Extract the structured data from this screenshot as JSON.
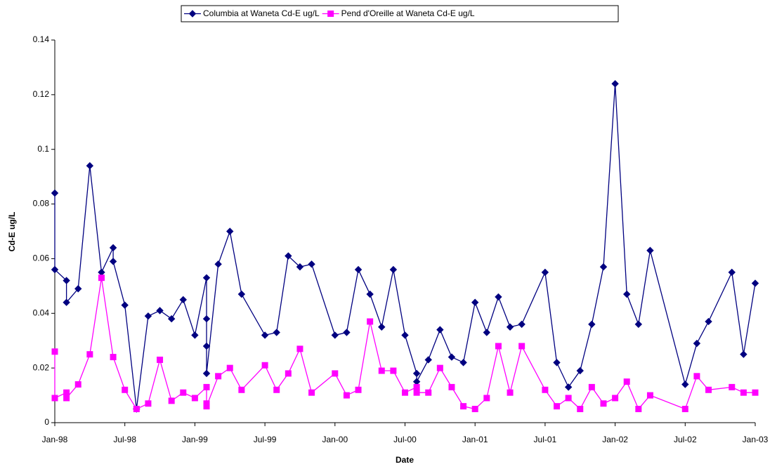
{
  "chart_data": {
    "type": "line",
    "x_label": "Date",
    "y_label": "Cd-E ug/L",
    "xlim": [
      "1998-01",
      "2003-01"
    ],
    "xticks": [
      {
        "value": "1998-01",
        "label": "Jan-98"
      },
      {
        "value": "1998-07",
        "label": "Jul-98"
      },
      {
        "value": "1999-01",
        "label": "Jan-99"
      },
      {
        "value": "1999-07",
        "label": "Jul-99"
      },
      {
        "value": "2000-01",
        "label": "Jan-00"
      },
      {
        "value": "2000-07",
        "label": "Jul-00"
      },
      {
        "value": "2001-01",
        "label": "Jan-01"
      },
      {
        "value": "2001-07",
        "label": "Jul-01"
      },
      {
        "value": "2002-01",
        "label": "Jan-02"
      },
      {
        "value": "2002-07",
        "label": "Jul-02"
      },
      {
        "value": "2003-01",
        "label": "Jan-03"
      }
    ],
    "ylim": [
      0,
      0.14
    ],
    "yticks": [
      0,
      0.02,
      0.04,
      0.06,
      0.08,
      0.1,
      0.12,
      0.14
    ],
    "legend": "top",
    "series": [
      {
        "name": "Columbia at Waneta Cd-E ug/L",
        "color": "#000080",
        "marker": "diamond",
        "x": [
          "1998-01",
          "1998-01",
          "1998-02",
          "1998-02",
          "1998-03",
          "1998-04",
          "1998-05",
          "1998-06",
          "1998-06",
          "1998-07",
          "1998-08",
          "1998-09",
          "1998-10",
          "1998-11",
          "1998-12",
          "1999-01",
          "1999-02",
          "1999-02",
          "1999-02",
          "1999-02",
          "1999-03",
          "1999-04",
          "1999-05",
          "1999-07",
          "1999-08",
          "1999-09",
          "1999-10",
          "1999-11",
          "2000-01",
          "2000-02",
          "2000-03",
          "2000-04",
          "2000-05",
          "2000-06",
          "2000-07",
          "2000-08",
          "2000-08",
          "2000-09",
          "2000-10",
          "2000-11",
          "2000-12",
          "2001-01",
          "2001-02",
          "2001-03",
          "2001-04",
          "2001-05",
          "2001-07",
          "2001-08",
          "2001-09",
          "2001-10",
          "2001-11",
          "2001-12",
          "2002-01",
          "2002-02",
          "2002-03",
          "2002-04",
          "2002-07",
          "2002-08",
          "2002-09",
          "2002-11",
          "2002-12",
          "2003-01"
        ],
        "values": [
          0.084,
          0.056,
          0.052,
          0.044,
          0.049,
          0.094,
          0.055,
          0.064,
          0.059,
          0.043,
          0.005,
          0.039,
          0.041,
          0.038,
          0.045,
          0.032,
          0.053,
          0.038,
          0.028,
          0.018,
          0.058,
          0.07,
          0.047,
          0.032,
          0.033,
          0.061,
          0.057,
          0.058,
          0.032,
          0.033,
          0.056,
          0.047,
          0.035,
          0.056,
          0.032,
          0.018,
          0.015,
          0.023,
          0.034,
          0.024,
          0.022,
          0.044,
          0.033,
          0.046,
          0.035,
          0.036,
          0.055,
          0.022,
          0.013,
          0.019,
          0.036,
          0.057,
          0.124,
          0.047,
          0.036,
          0.063,
          0.014,
          0.029,
          0.037,
          0.055,
          0.025,
          0.051
        ]
      },
      {
        "name": "Pend d'Oreille at Waneta Cd-E ug/L",
        "color": "#FF00FF",
        "marker": "square",
        "x": [
          "1998-01",
          "1998-01",
          "1998-02",
          "1998-02",
          "1998-03",
          "1998-04",
          "1998-05",
          "1998-06",
          "1998-07",
          "1998-08",
          "1998-09",
          "1998-10",
          "1998-11",
          "1998-12",
          "1999-01",
          "1999-02",
          "1999-02",
          "1999-02",
          "1999-03",
          "1999-04",
          "1999-05",
          "1999-07",
          "1999-08",
          "1999-09",
          "1999-10",
          "1999-11",
          "2000-01",
          "2000-02",
          "2000-03",
          "2000-04",
          "2000-05",
          "2000-06",
          "2000-07",
          "2000-08",
          "2000-08",
          "2000-09",
          "2000-10",
          "2000-11",
          "2000-12",
          "2001-01",
          "2001-02",
          "2001-03",
          "2001-04",
          "2001-05",
          "2001-07",
          "2001-08",
          "2001-09",
          "2001-10",
          "2001-11",
          "2001-12",
          "2002-01",
          "2002-02",
          "2002-03",
          "2002-04",
          "2002-07",
          "2002-08",
          "2002-09",
          "2002-11",
          "2002-12",
          "2003-01"
        ],
        "values": [
          0.026,
          0.009,
          0.011,
          0.009,
          0.014,
          0.025,
          0.053,
          0.024,
          0.012,
          0.005,
          0.007,
          0.023,
          0.008,
          0.011,
          0.009,
          0.013,
          0.007,
          0.006,
          0.017,
          0.02,
          0.012,
          0.021,
          0.012,
          0.018,
          0.027,
          0.011,
          0.018,
          0.01,
          0.012,
          0.037,
          0.019,
          0.019,
          0.011,
          0.013,
          0.011,
          0.011,
          0.02,
          0.013,
          0.006,
          0.005,
          0.009,
          0.028,
          0.011,
          0.028,
          0.012,
          0.006,
          0.009,
          0.005,
          0.013,
          0.007,
          0.009,
          0.015,
          0.005,
          0.01,
          0.005,
          0.017,
          0.012,
          0.013,
          0.011,
          0.011
        ]
      }
    ]
  }
}
